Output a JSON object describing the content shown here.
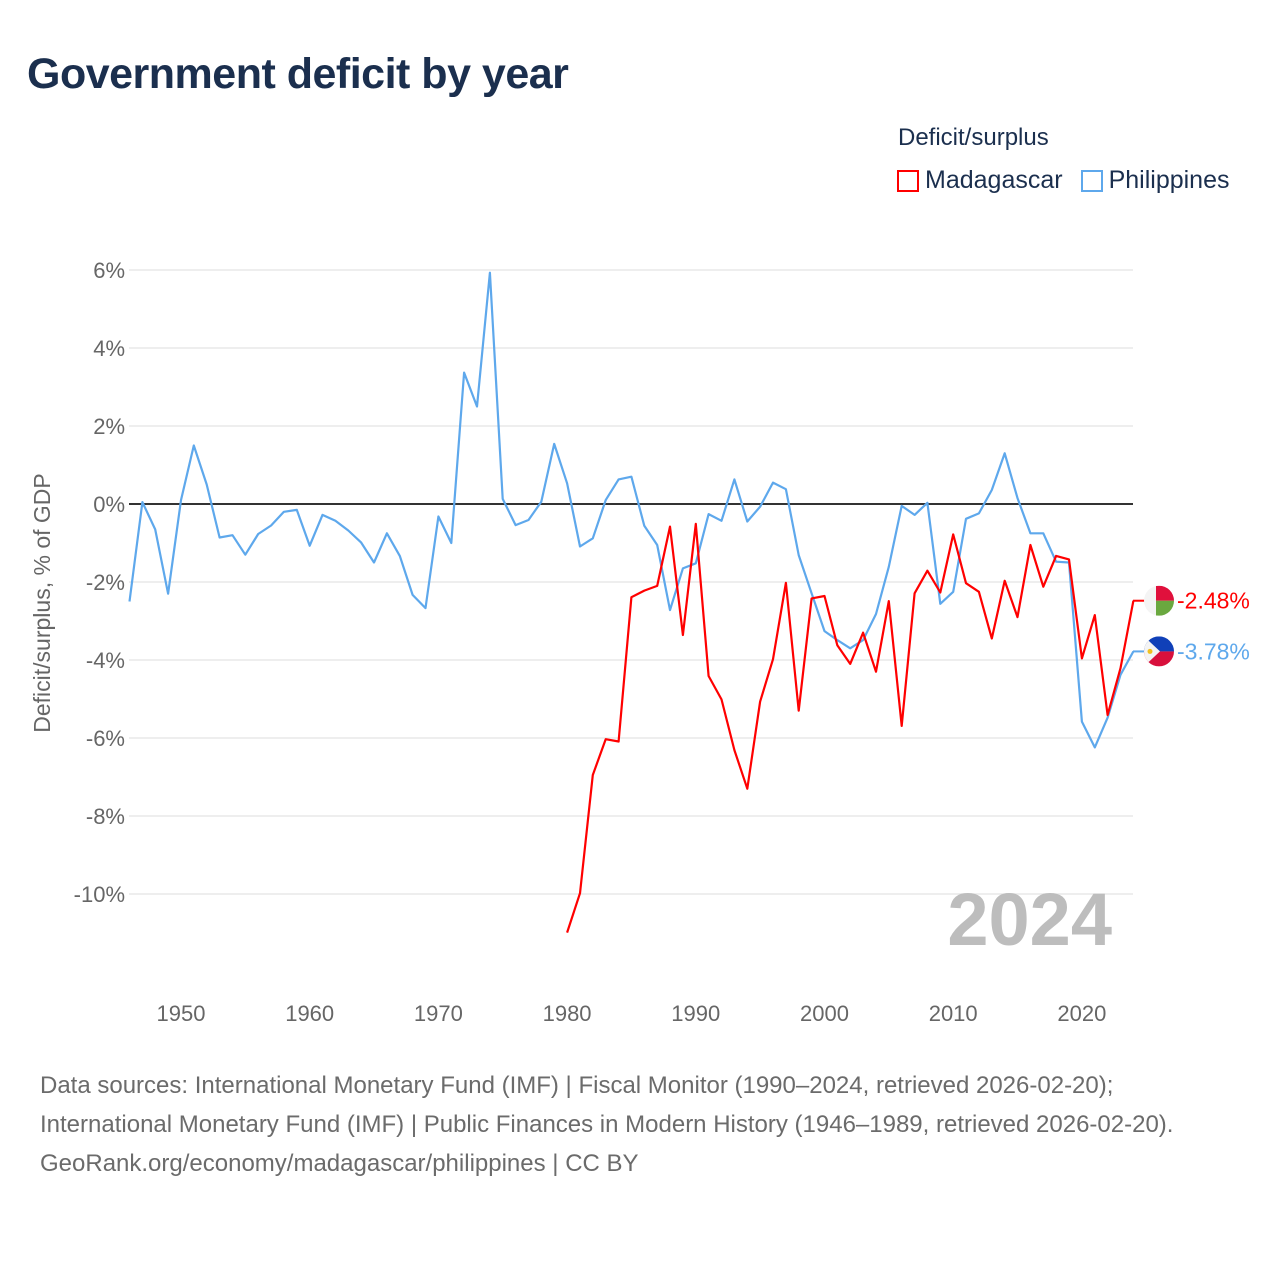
{
  "title": "Government deficit by year",
  "legend": {
    "title": "Deficit/surplus",
    "items": [
      {
        "label": "Madagascar",
        "color": "#ff0000"
      },
      {
        "label": "Philippines",
        "color": "#5ea8ec"
      }
    ]
  },
  "footer": {
    "line1": "Data sources: International Monetary Fund (IMF) | Fiscal Monitor (1990–2024, retrieved 2026-02-20); International Monetary Fund (IMF) | Public Finances in Modern History (1946–1989, retrieved 2026-02-20).",
    "line2": "GeoRank.org/economy/madagascar/philippines | CC BY"
  },
  "chart_data": {
    "type": "line",
    "title": "Government deficit by year",
    "xlabel": "",
    "ylabel": "Deficit/surplus, % of GDP",
    "xlim": [
      1946,
      2024
    ],
    "ylim": [
      -12,
      6.5
    ],
    "x_ticks": [
      1950,
      1960,
      1970,
      1980,
      1990,
      2000,
      2010,
      2020
    ],
    "y_ticks": [
      6,
      4,
      2,
      0,
      -2,
      -4,
      -6,
      -8,
      -10
    ],
    "y_tick_labels": [
      "6%",
      "4%",
      "2%",
      "0%",
      "-2%",
      "-4%",
      "-6%",
      "-8%",
      "-10%"
    ],
    "grid": true,
    "legend_position": "top-right",
    "year_watermark": "2024",
    "series": [
      {
        "name": "Madagascar",
        "color": "#ff0000",
        "end_label": "-2.48%",
        "flag": "madagascar",
        "start_year": 1980,
        "values": [
          -10.99,
          -9.98,
          -6.95,
          -6.03,
          -6.09,
          -2.39,
          -2.22,
          -2.1,
          -0.58,
          -3.36,
          -0.51,
          -4.41,
          -5.01,
          -6.31,
          -7.3,
          -5.07,
          -3.98,
          -2.02,
          -5.3,
          -2.42,
          -2.36,
          -3.62,
          -4.1,
          -3.3,
          -4.3,
          -2.49,
          -5.69,
          -2.29,
          -1.71,
          -2.27,
          -0.78,
          -2.03,
          -2.25,
          -3.45,
          -1.97,
          -2.9,
          -1.05,
          -2.12,
          -1.33,
          -1.42,
          -3.96,
          -2.85,
          -5.41,
          -4.21,
          -2.48
        ]
      },
      {
        "name": "Philippines",
        "color": "#5ea8ec",
        "end_label": "-3.78%",
        "flag": "philippines",
        "start_year": 1946,
        "values": [
          -2.5,
          0.05,
          -0.65,
          -2.3,
          0.1,
          1.5,
          0.5,
          -0.86,
          -0.8,
          -1.3,
          -0.77,
          -0.55,
          -0.2,
          -0.15,
          -1.07,
          -0.28,
          -0.43,
          -0.68,
          -0.99,
          -1.5,
          -0.75,
          -1.33,
          -2.33,
          -2.67,
          -0.32,
          -1.0,
          3.37,
          2.5,
          5.93,
          0.13,
          -0.54,
          -0.41,
          0.06,
          1.54,
          0.53,
          -1.09,
          -0.88,
          0.1,
          0.63,
          0.7,
          -0.56,
          -1.05,
          -2.72,
          -1.65,
          -1.52,
          -0.26,
          -0.43,
          0.63,
          -0.45,
          -0.07,
          0.55,
          0.38,
          -1.31,
          -2.29,
          -3.26,
          -3.49,
          -3.7,
          -3.49,
          -2.82,
          -1.61,
          -0.05,
          -0.28,
          0.03,
          -2.56,
          -2.25,
          -0.38,
          -0.24,
          0.36,
          1.3,
          0.15,
          -0.75,
          -0.75,
          -1.48,
          -1.5,
          -5.58,
          -6.24,
          -5.48,
          -4.38,
          -3.78
        ]
      }
    ]
  }
}
